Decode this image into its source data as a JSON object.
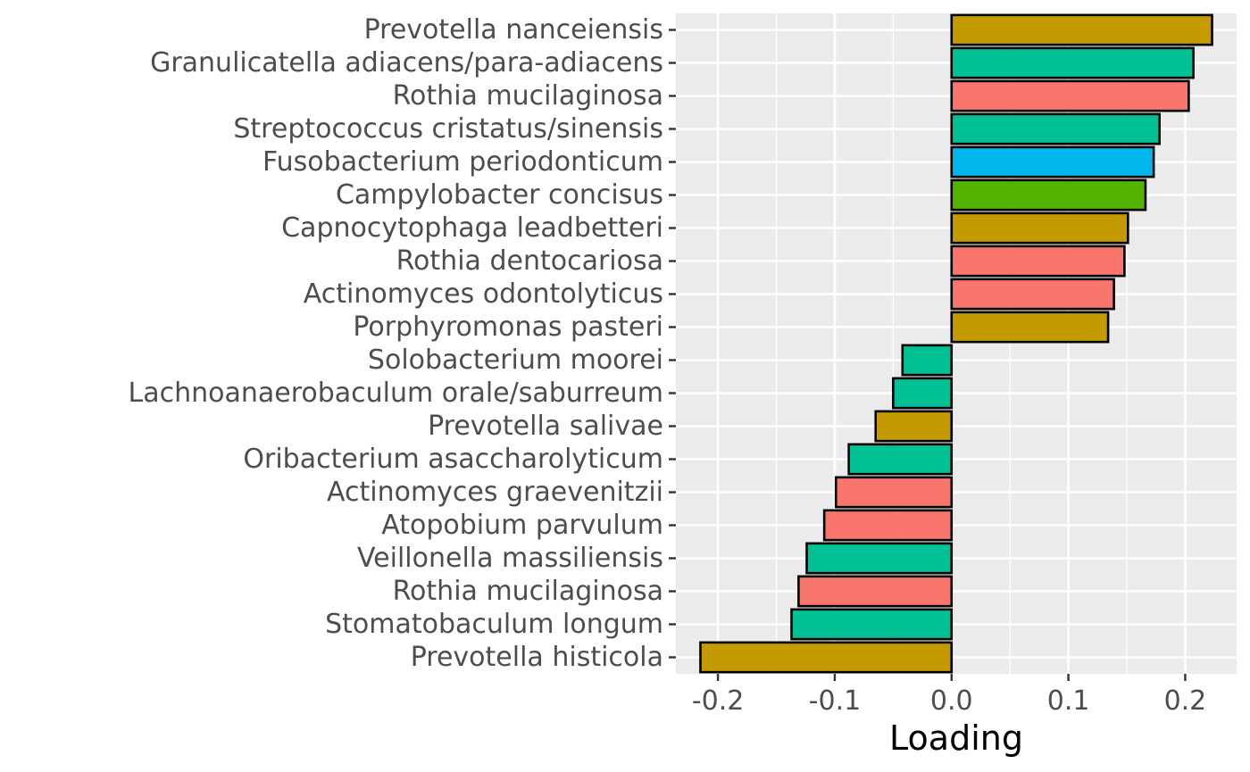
{
  "chart_data": {
    "type": "bar",
    "orientation": "horizontal",
    "xlabel": "Loading",
    "ylabel": "",
    "xlim": [
      -0.236,
      0.244
    ],
    "x_ticks": [
      -0.2,
      -0.1,
      0.0,
      0.1,
      0.2
    ],
    "x_tick_labels": [
      "-0.2",
      "-0.1",
      "0.0",
      "0.1",
      "0.2"
    ],
    "grid": true,
    "legend": "none",
    "colors": {
      "gold": "#C49A00",
      "teal": "#00C094",
      "salmon": "#F8766D",
      "blue": "#00B6EB",
      "green": "#53B400"
    },
    "bars": [
      {
        "label": "Prevotella nanceiensis",
        "value": 0.223,
        "color": "#C49A00"
      },
      {
        "label": "Granulicatella adiacens/para-adiacens",
        "value": 0.207,
        "color": "#00C094"
      },
      {
        "label": "Rothia mucilaginosa",
        "value": 0.203,
        "color": "#F8766D"
      },
      {
        "label": "Streptococcus cristatus/sinensis",
        "value": 0.178,
        "color": "#00C094"
      },
      {
        "label": "Fusobacterium periodonticum",
        "value": 0.173,
        "color": "#00B6EB"
      },
      {
        "label": "Campylobacter concisus",
        "value": 0.166,
        "color": "#53B400"
      },
      {
        "label": "Capnocytophaga leadbetteri",
        "value": 0.151,
        "color": "#C49A00"
      },
      {
        "label": "Rothia dentocariosa",
        "value": 0.148,
        "color": "#F8766D"
      },
      {
        "label": "Actinomyces odontolyticus",
        "value": 0.139,
        "color": "#F8766D"
      },
      {
        "label": "Porphyromonas pasteri",
        "value": 0.134,
        "color": "#C49A00"
      },
      {
        "label": "Solobacterium moorei",
        "value": -0.042,
        "color": "#00C094"
      },
      {
        "label": "Lachnoanaerobaculum orale/saburreum",
        "value": -0.05,
        "color": "#00C094"
      },
      {
        "label": "Prevotella salivae",
        "value": -0.065,
        "color": "#C49A00"
      },
      {
        "label": "Oribacterium asaccharolyticum",
        "value": -0.088,
        "color": "#00C094"
      },
      {
        "label": "Actinomyces graevenitzii",
        "value": -0.099,
        "color": "#F8766D"
      },
      {
        "label": "Atopobium parvulum",
        "value": -0.109,
        "color": "#F8766D"
      },
      {
        "label": "Veillonella massiliensis",
        "value": -0.124,
        "color": "#00C094"
      },
      {
        "label": "Rothia mucilaginosa",
        "value": -0.131,
        "color": "#F8766D"
      },
      {
        "label": "Stomatobaculum longum",
        "value": -0.137,
        "color": "#00C094"
      },
      {
        "label": "Prevotella histicola",
        "value": -0.215,
        "color": "#C49A00"
      }
    ]
  }
}
